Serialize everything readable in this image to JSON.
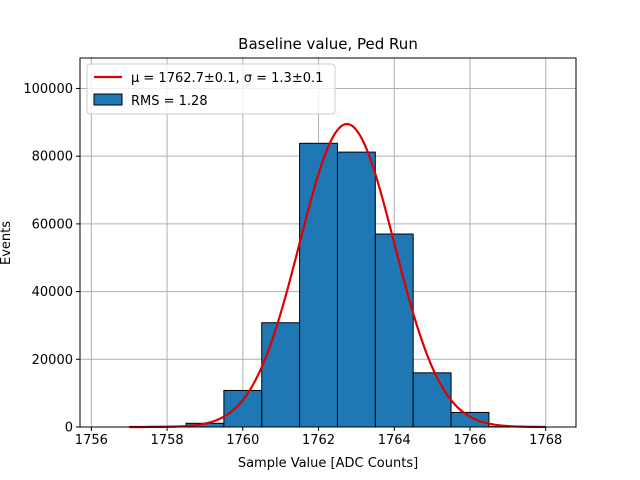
{
  "chart_data": {
    "type": "bar",
    "title": "Baseline value, Ped Run",
    "xlabel": "Sample Value [ADC Counts]",
    "ylabel": "Events",
    "xlim": [
      1755.7,
      1768.8
    ],
    "ylim": [
      0,
      109000
    ],
    "grid": true,
    "legend_position": "top-left",
    "x_ticks": [
      1756,
      1758,
      1760,
      1762,
      1764,
      1766,
      1768
    ],
    "y_ticks": [
      0,
      20000,
      40000,
      60000,
      80000,
      100000
    ],
    "bins": [
      {
        "x0": 1756.5,
        "x1": 1757.5,
        "count": 0
      },
      {
        "x0": 1757.5,
        "x1": 1758.5,
        "count": 200
      },
      {
        "x0": 1758.5,
        "x1": 1759.5,
        "count": 1100
      },
      {
        "x0": 1759.5,
        "x1": 1760.5,
        "count": 10800
      },
      {
        "x0": 1760.5,
        "x1": 1761.5,
        "count": 30800
      },
      {
        "x0": 1761.5,
        "x1": 1762.5,
        "count": 83800
      },
      {
        "x0": 1762.5,
        "x1": 1763.5,
        "count": 81200
      },
      {
        "x0": 1763.5,
        "x1": 1764.5,
        "count": 57000
      },
      {
        "x0": 1764.5,
        "x1": 1765.5,
        "count": 16000
      },
      {
        "x0": 1765.5,
        "x1": 1766.5,
        "count": 4300
      },
      {
        "x0": 1766.5,
        "x1": 1767.5,
        "count": 100
      }
    ],
    "histogram": {
      "label": "RMS = 1.28",
      "color": "#1f77b4"
    },
    "fit": {
      "label": "μ = 1762.7±0.1, σ = 1.3±0.1",
      "mu": 1762.75,
      "sigma": 1.25,
      "amplitude": 89500,
      "x_range": [
        1757,
        1768
      ],
      "color": "#e00000"
    }
  }
}
